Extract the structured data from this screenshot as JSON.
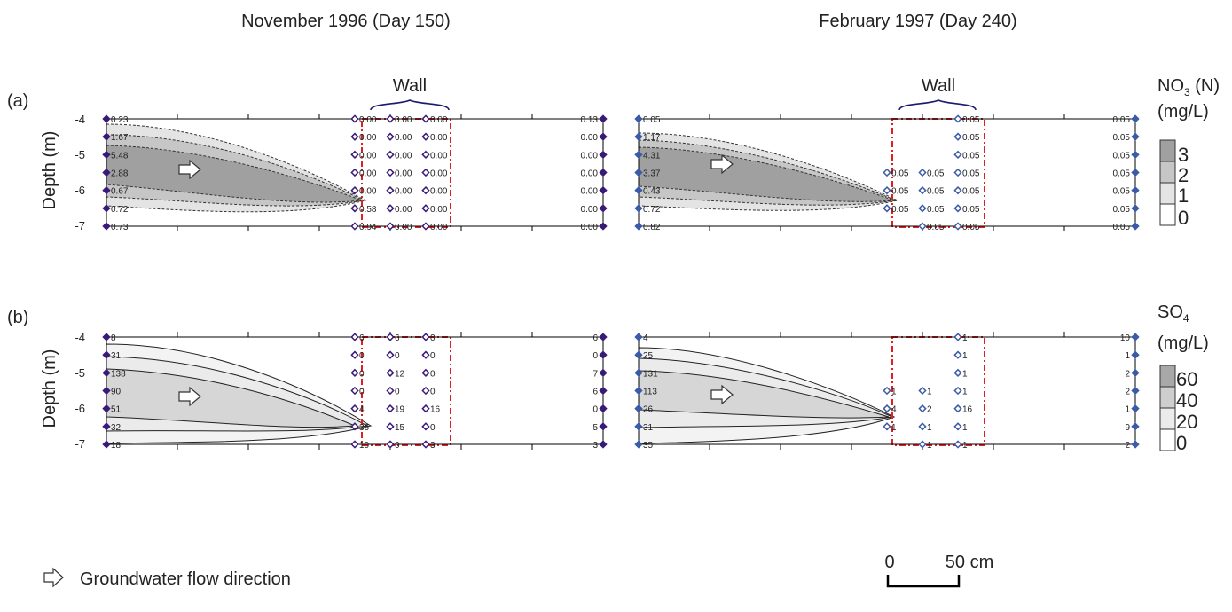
{
  "titles": {
    "left": "November 1996 (Day 150)",
    "right": "February 1997 (Day 240)"
  },
  "row_labels": {
    "a": "(a)",
    "b": "(b)"
  },
  "ylabel": "Depth (m)",
  "wall_label": "Wall",
  "yticks": [
    "-4",
    "-5",
    "-6",
    "-7"
  ],
  "legends": {
    "no3": {
      "title_main": "NO",
      "title_sub": "3",
      "title_suffix": " (N)",
      "units": "(mg/L)",
      "levels": [
        "3",
        "2",
        "1",
        "0"
      ],
      "colors": [
        "#a0a0a0",
        "#c6c6c6",
        "#e4e4e4",
        "#ffffff"
      ]
    },
    "so4": {
      "title_main": "SO",
      "title_sub": "4",
      "units": "(mg/L)",
      "levels": [
        "60",
        "40",
        "20",
        "0"
      ],
      "colors": [
        "#a8a8a8",
        "#cecece",
        "#ebebeb",
        "#ffffff"
      ]
    }
  },
  "flow_legend": "Groundwater flow direction",
  "scale_bar": {
    "start": "0",
    "end": "50 cm"
  },
  "colors": {
    "wall": "#e02020",
    "marker_dark": "#3a1a78",
    "marker_blue": "#3b5ba8"
  },
  "chart_data": [
    {
      "type": "heatmap",
      "name": "nov96_no3",
      "ylim": [
        -7,
        -4
      ],
      "columns": [
        {
          "x": 0,
          "labels": [
            "0.23",
            "1.67",
            "5.48",
            "2.88",
            "0.67",
            "0.72",
            "0.73"
          ]
        },
        {
          "x": 3.5,
          "labels": [
            "0.00",
            "0.00",
            "0.00",
            "0.00",
            "0.00",
            "0.58",
            "0.94"
          ]
        },
        {
          "x": 4,
          "labels": [
            "0.00",
            "0.00",
            "0.00",
            "0.00",
            "0.00",
            "0.00",
            "0.00"
          ]
        },
        {
          "x": 4.5,
          "labels": [
            "0.00",
            "0.00",
            "0.00",
            "0.00",
            "0.00",
            "0.00",
            "0.00"
          ]
        },
        {
          "x": 7,
          "labels": [
            "0.13",
            "0.00",
            "0.00",
            "0.00",
            "0.00",
            "0.00",
            "0.00"
          ]
        }
      ]
    },
    {
      "type": "heatmap",
      "name": "feb97_no3",
      "ylim": [
        -7,
        -4
      ],
      "columns": [
        {
          "x": 0,
          "labels": [
            "0.05",
            "1.17",
            "4.31",
            "3.37",
            "0.43",
            "0.72",
            "0.82"
          ]
        },
        {
          "x": 3.5,
          "labels": [
            "",
            "",
            "",
            "0.05",
            "0.05",
            "0.05",
            ""
          ]
        },
        {
          "x": 4,
          "labels": [
            "",
            "",
            "",
            "0.05",
            "0.05",
            "0.05",
            "0.05"
          ]
        },
        {
          "x": 4.5,
          "labels": [
            "0.05",
            "0.05",
            "0.05",
            "0.05",
            "0.05",
            "0.05",
            "0.05"
          ]
        },
        {
          "x": 7,
          "labels": [
            "0.05",
            "0.05",
            "0.05",
            "0.05",
            "0.05",
            "0.05",
            "0.05"
          ]
        }
      ]
    },
    {
      "type": "heatmap",
      "name": "nov96_so4",
      "ylim": [
        -7,
        -4
      ],
      "columns": [
        {
          "x": 0,
          "labels": [
            "8",
            "31",
            "138",
            "90",
            "51",
            "32",
            "18"
          ]
        },
        {
          "x": 3.5,
          "labels": [
            "6",
            "0",
            "0",
            "0",
            "4",
            "36",
            "10"
          ]
        },
        {
          "x": 4,
          "labels": [
            "6",
            "0",
            "12",
            "0",
            "19",
            "15",
            "0"
          ]
        },
        {
          "x": 4.5,
          "labels": [
            "0",
            "0",
            "0",
            "0",
            "16",
            "0",
            "3"
          ]
        },
        {
          "x": 7,
          "labels": [
            "6",
            "0",
            "7",
            "6",
            "0",
            "5",
            "3"
          ]
        }
      ]
    },
    {
      "type": "heatmap",
      "name": "feb97_so4",
      "ylim": [
        -7,
        -4
      ],
      "columns": [
        {
          "x": 0,
          "labels": [
            "4",
            "25",
            "131",
            "113",
            "26",
            "31",
            "35"
          ]
        },
        {
          "x": 3.5,
          "labels": [
            "",
            "",
            "",
            "1",
            "4",
            "1",
            ""
          ]
        },
        {
          "x": 4,
          "labels": [
            "",
            "",
            "",
            "1",
            "2",
            "1",
            "1"
          ]
        },
        {
          "x": 4.5,
          "labels": [
            "1",
            "1",
            "1",
            "1",
            "16",
            "1",
            "1"
          ]
        },
        {
          "x": 7,
          "labels": [
            "10",
            "1",
            "2",
            "2",
            "1",
            "9",
            "2"
          ]
        }
      ]
    }
  ]
}
